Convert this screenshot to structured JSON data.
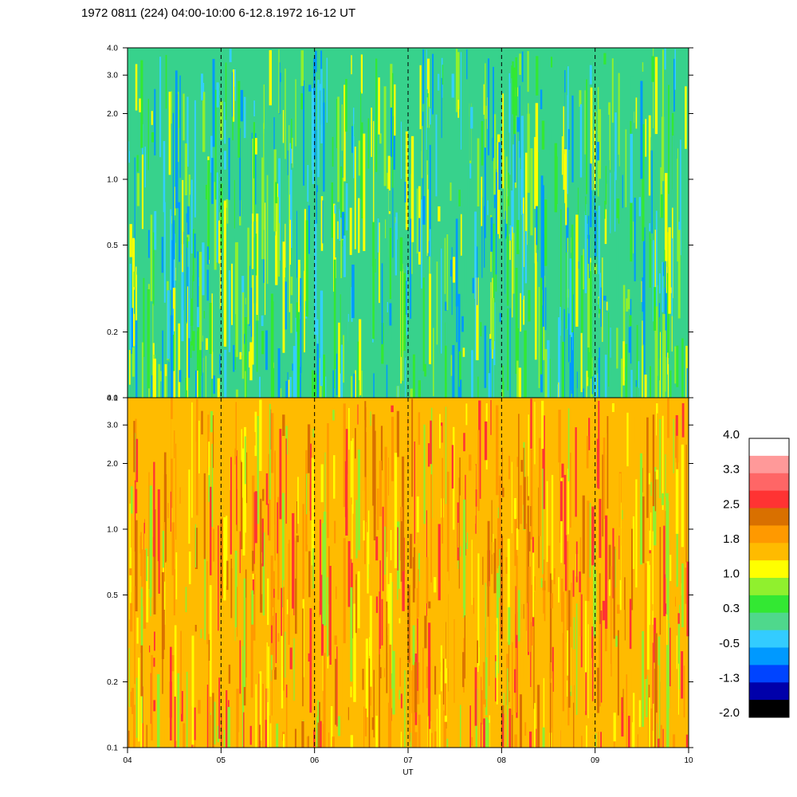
{
  "chart_data": {
    "type": "heatmap",
    "title": "1972 0811 (224) 04:00-10:00 6-12.8.1972  16-12 UT",
    "xlabel": "UT",
    "x_ticks": [
      "04",
      "05",
      "06",
      "07",
      "08",
      "09",
      "10"
    ],
    "x_range": [
      4,
      10
    ],
    "y_scale": "log",
    "y_range": [
      0.1,
      4.0
    ],
    "y_ticks": [
      "0.1",
      "0.2",
      "0.5",
      "1.0",
      "2.0",
      "3.0",
      "4.0"
    ],
    "y_tick_values": [
      0.1,
      0.2,
      0.5,
      1.0,
      2.0,
      3.0,
      4.0
    ],
    "dashed_gridlines_x": [
      5,
      6,
      7,
      8,
      9
    ],
    "panels": [
      {
        "name": "upper-spectrogram",
        "dominant_levels": "-0.5 to 1.0",
        "colors": [
          "#37d28c",
          "#33e833",
          "#90f02e",
          "#ffff00",
          "#33cfff",
          "#0099ff"
        ]
      },
      {
        "name": "lower-spectrogram",
        "dominant_levels": "1.0 to 2.5",
        "colors": [
          "#ffbb00",
          "#ff9900",
          "#ffff00",
          "#d97000",
          "#90f02e",
          "#ff3333"
        ]
      }
    ],
    "colorbar": {
      "labels": [
        "4.0",
        "3.3",
        "2.5",
        "1.8",
        "1.0",
        "0.3",
        "-0.5",
        "-1.3",
        "-2.0"
      ],
      "colors": [
        "#ffffff",
        "#ff9999",
        "#ff6666",
        "#ff3333",
        "#d97000",
        "#ff9900",
        "#ffbb00",
        "#ffff00",
        "#90f02e",
        "#33e833",
        "#4fd88c",
        "#33ccff",
        "#0099ff",
        "#0044ff",
        "#0000aa",
        "#000000"
      ]
    }
  }
}
